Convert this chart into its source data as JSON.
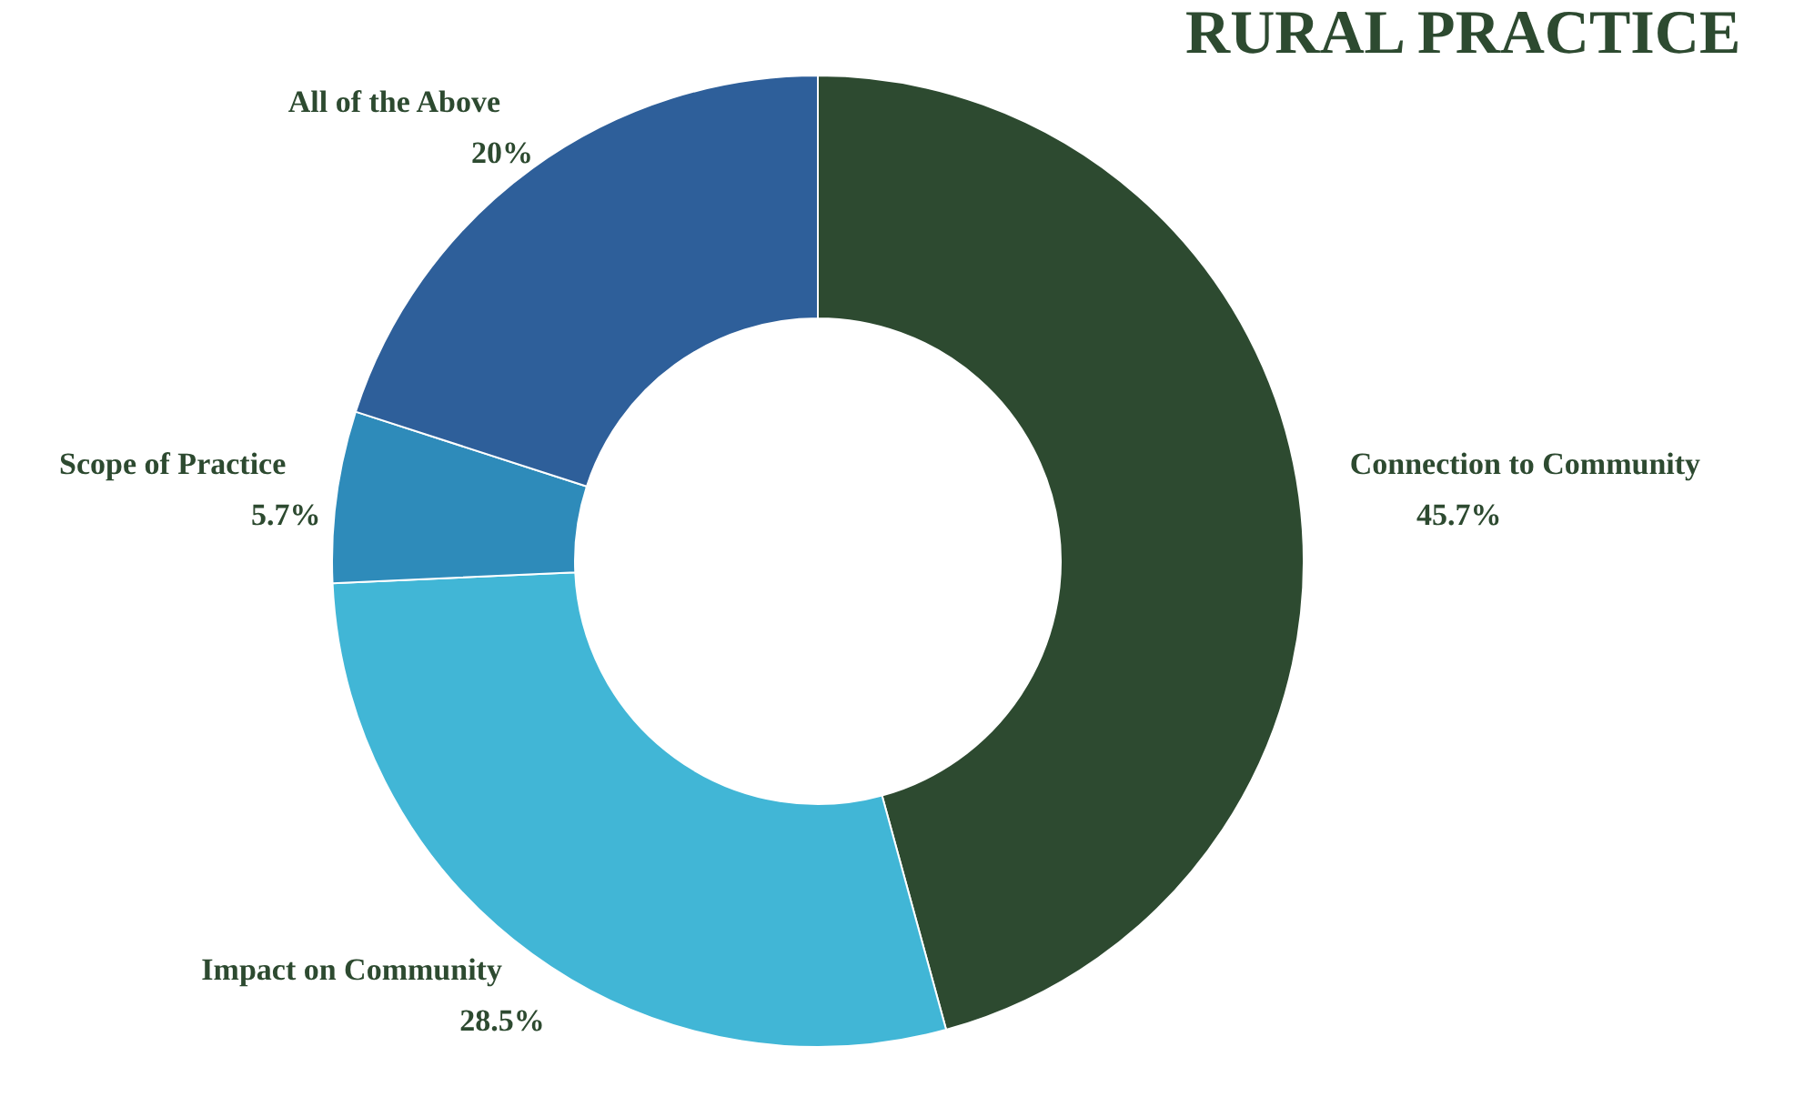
{
  "chart_data": {
    "type": "donut",
    "title": "RURAL PRACTICE",
    "categories": [
      "Connection to Community",
      "Impact on Community",
      "Scope of Practice",
      "All of the Above"
    ],
    "values": [
      45.7,
      28.5,
      5.7,
      20
    ],
    "value_labels": [
      "45.7%",
      "28.5%",
      "5.7%",
      "20%"
    ],
    "colors": [
      "#2d4a30",
      "#41b6d6",
      "#2e8bba",
      "#2e5f9a"
    ],
    "legend": false
  }
}
